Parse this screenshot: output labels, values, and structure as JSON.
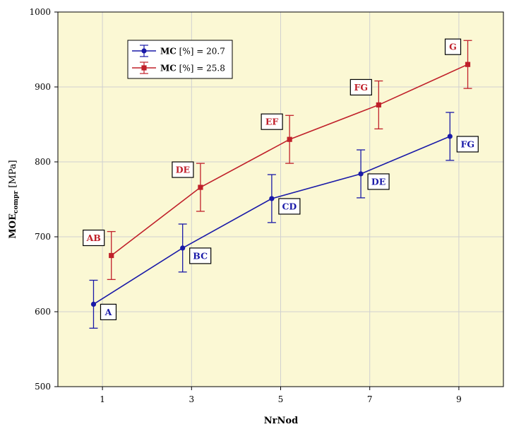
{
  "chart_data": {
    "type": "line",
    "title": "",
    "xlabel": "NrNod",
    "ylabel": {
      "main": "MOE",
      "sub": "compr",
      "unit": " [MPa]"
    },
    "x": [
      1,
      3,
      5,
      7,
      9
    ],
    "xticks": [
      "1",
      "3",
      "5",
      "7",
      "9"
    ],
    "xlim": [
      0,
      10
    ],
    "ylim": [
      500,
      1000
    ],
    "yticks": [
      "500",
      "600",
      "700",
      "800",
      "900",
      "1000"
    ],
    "grid": true,
    "legend_position": "top-left",
    "series": [
      {
        "name_bold": "MC",
        "name_rest": " [%] = 20.7",
        "color": "#1a1aa8",
        "marker": "circle",
        "x_offset": -0.2,
        "values": [
          610,
          685,
          751,
          784,
          834
        ],
        "error": [
          32,
          32,
          32,
          32,
          32
        ],
        "labels": [
          "A",
          "BC",
          "CD",
          "DE",
          "FG"
        ]
      },
      {
        "name_bold": "MC",
        "name_rest": " [%] = 25.8",
        "color": "#c0202a",
        "marker": "square",
        "x_offset": 0.2,
        "values": [
          675,
          766,
          830,
          876,
          930
        ],
        "error": [
          32,
          32,
          32,
          32,
          32
        ],
        "labels": [
          "AB",
          "DE",
          "EF",
          "FG",
          "G"
        ]
      }
    ]
  },
  "colors": {
    "plot_background": "#fbf8d4",
    "grid": "#d0d0d0",
    "axis": "#000000"
  }
}
